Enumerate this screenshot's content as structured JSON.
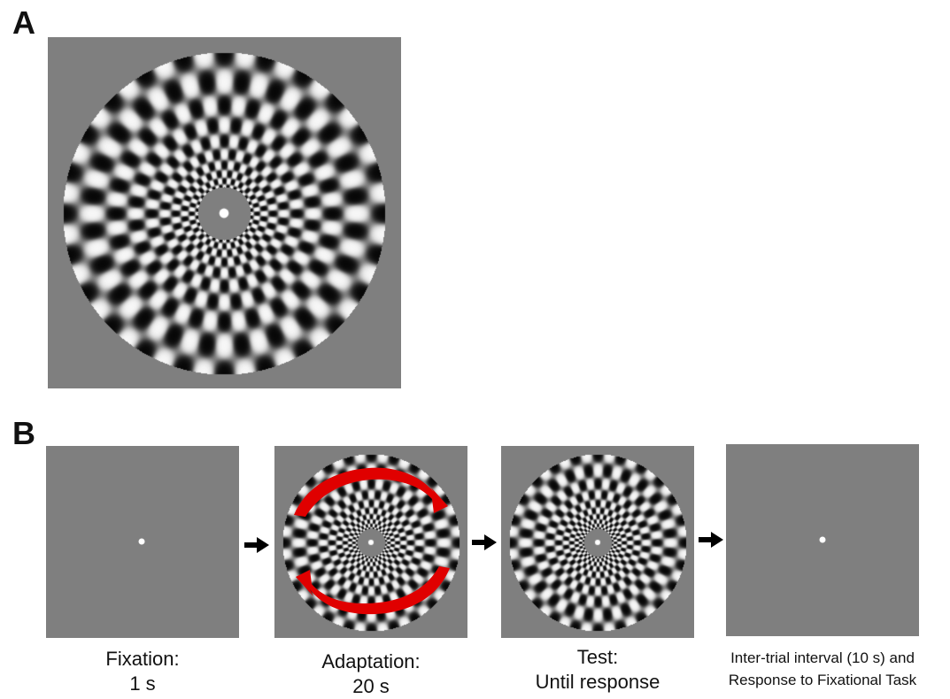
{
  "panels": {
    "a": {
      "letter": "A"
    },
    "b": {
      "letter": "B"
    }
  },
  "colors": {
    "background_gray": "#7f7f7f",
    "dark": "#101010",
    "light": "#fafafa",
    "rotation_arrow": "#e00000",
    "sequence_arrow": "#000000",
    "fixation_dot": "#ffffff"
  },
  "stimulus": {
    "type": "radial-concentric-checkerboard",
    "spokes": 24
  },
  "sequence": [
    {
      "name": "fixation",
      "line1": "Fixation:",
      "line2": "1 s"
    },
    {
      "name": "adaptation",
      "line1": "Adaptation:",
      "line2": "20 s"
    },
    {
      "name": "test",
      "line1": "Test:",
      "line2": "Until response"
    },
    {
      "name": "iti",
      "line1": "Inter-trial interval (10 s) and",
      "line2": "Response to Fixational Task"
    }
  ]
}
